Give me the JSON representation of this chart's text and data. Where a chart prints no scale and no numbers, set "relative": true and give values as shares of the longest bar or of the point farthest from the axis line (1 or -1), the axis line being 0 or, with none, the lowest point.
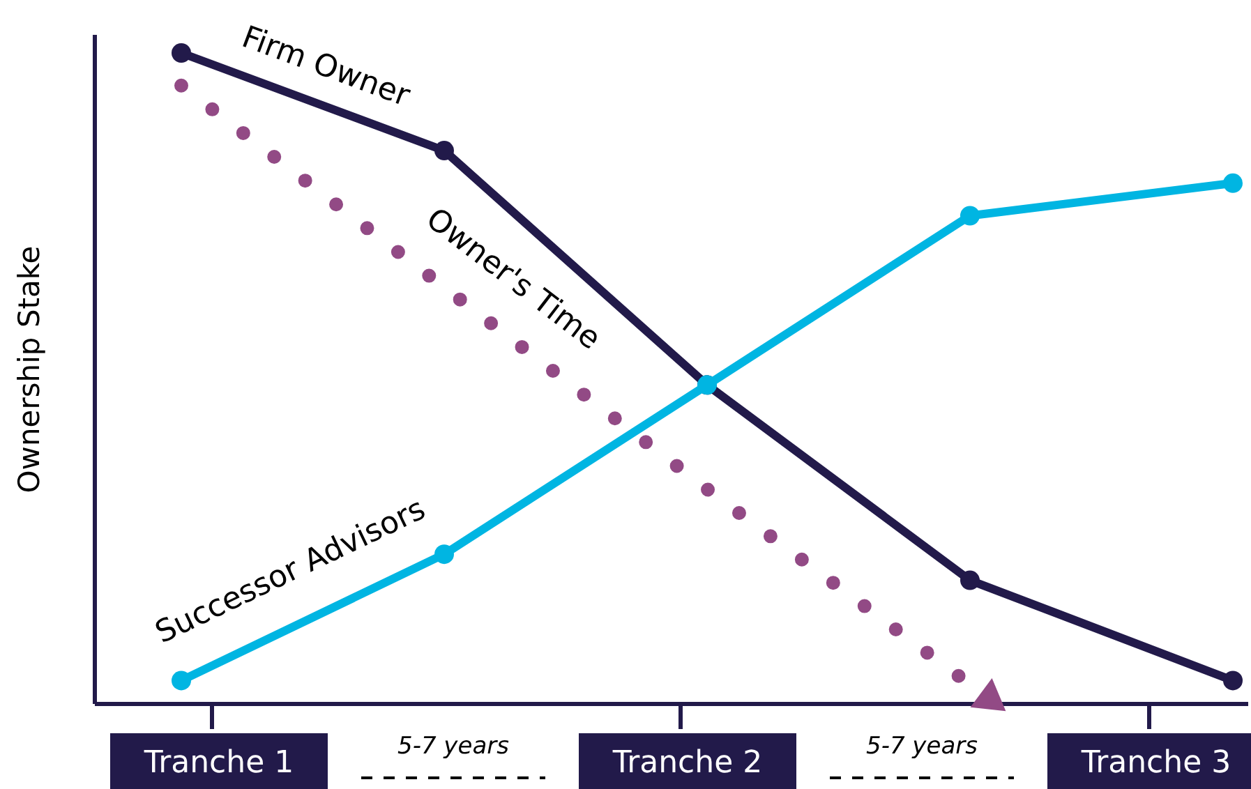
{
  "chart_data": {
    "type": "line",
    "relative": true,
    "ylabel": "Ownership Stake",
    "categories": [
      null,
      null,
      null,
      null,
      null
    ],
    "annotations": [
      "Tranche 1",
      "5-7 years",
      "Tranche 2",
      "5-7 years",
      "Tranche 3"
    ],
    "series": [
      {
        "name": "Firm Owner",
        "color": "#221a4a",
        "marker": "circle",
        "line_style": "solid",
        "values": [
          1,
          0.85,
          0.49,
          0.19,
          0.036
        ]
      },
      {
        "name": "Owner's Time",
        "color": "#924a85",
        "marker": "none",
        "line_style": "dotted",
        "values": [
          0.95,
          0.64,
          0.33,
          0.03,
          null
        ]
      },
      {
        "name": "Successor Advisors",
        "color": "#00b5e2",
        "marker": "circle",
        "line_style": "solid",
        "values": [
          0.036,
          0.23,
          0.49,
          0.75,
          0.8
        ]
      }
    ]
  }
}
